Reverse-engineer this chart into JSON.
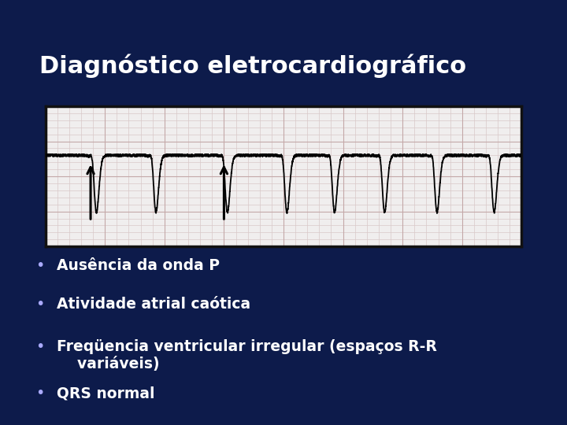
{
  "title": "Diagnóstico eletrocardiográfico",
  "top_bar_color": "#0d1b4b",
  "title_bg_color": "#4169d4",
  "title_text_color": "#ffffff",
  "slide_bg_color": "#0d1b4b",
  "bullet_dot_color": "#aaaaff",
  "bullet_text_color": "#ffffff",
  "bullets": [
    "Ausência da onda P",
    "Atividade atrial caótica",
    "Freqüencia ventricular irregular (espaços R-R\nvariáveis)",
    "QRS normal"
  ],
  "ecg_bg_color": "#f0eeee",
  "ecg_grid_minor_color": "#d8c8c8",
  "ecg_grid_major_color": "#c4a8a8",
  "ecg_line_color": "#000000",
  "ecg_border_color": "#111111",
  "arrow_color": "#000000"
}
